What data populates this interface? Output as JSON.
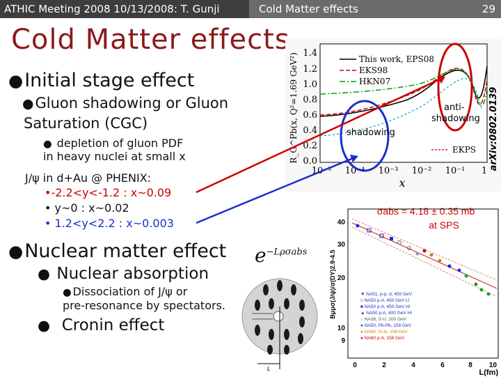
{
  "header": {
    "left": "ATHIC Meeting 2008 10/13/2008: T. Gunji",
    "center": "Cold Matter effects",
    "page_number": "29"
  },
  "title": "Cold Matter effects",
  "bullets": {
    "b1": "Initial stage effect",
    "b1_1a": "Gluon shadowing or Gluon",
    "b1_1b": "Saturation (CGC)",
    "b1_2a": "depletion of gluon PDF",
    "b1_2b": "in heavy nuclei at small x",
    "jpsi_head": "J/ψ in d+Au @ PHENIX:",
    "jpsi_1": "-2.2<y<-1.2 : x~0.09",
    "jpsi_2": "y~0 : x~0.02",
    "jpsi_3": "1.2<y<2.2 : x~0.003",
    "b2": "Nuclear matter effect",
    "b2_1": "Nuclear absorption",
    "b2_1_1a": "Dissociation of J/ψ or",
    "b2_1_1b": "pre-resonance by spectators.",
    "b2_2": "Cronin effect"
  },
  "shadow_plot": {
    "arxiv": "arXiv:0802.0139",
    "ylabel": "R_G^Pb(x, Q²=1.69 GeV²)",
    "xlabel": "x",
    "legend": [
      "This work, EPS08",
      "EKS98",
      "HKN07",
      "EKPS"
    ],
    "yticks": [
      "1.4",
      "1.2",
      "1.0",
      "0.8",
      "0.6",
      "0.4",
      "0.2",
      "0.0"
    ],
    "xticks": [
      "10⁻⁵",
      "10⁻⁴",
      "10⁻³",
      "10⁻²",
      "10⁻¹",
      "1"
    ],
    "shadowing": "shadowing",
    "antishadowing_a": "anti-",
    "antishadowing_b": "shadowing"
  },
  "absorption": {
    "formula": "e",
    "exponent": "−Lρσabs",
    "L_label": "L"
  },
  "sps_plot": {
    "sigma_label": "σabs = 4.18 ± 0.35 mb",
    "sigma_label2": "at SPS",
    "ylabel": "Bμμσ(J/ψ)/σ(DY)2.9-4.5",
    "xlabel": "L(fm)",
    "yticks": [
      "40",
      "30",
      "20",
      "10",
      "9"
    ],
    "xticks": [
      "0",
      "2",
      "4",
      "6",
      "8",
      "10"
    ],
    "legend": [
      "NA51, p-p, d, 450 GeV",
      "NA50 p-A, 450 GeV LI",
      "NA50 p-A, 450 GeV HI",
      "NA50 p-A, 400 GeV HI",
      "NA38, S-U, 200 GeV",
      "NA50, Pb-Pb, 158 GeV",
      "NA60, In-In, 158 GeV",
      "NA60 p-A, 158 GeV"
    ]
  },
  "colors": {
    "title": "#8b1a1a",
    "header_dark": "#3d3d3d",
    "header_light": "#6b6b6b",
    "red": "#cc0000",
    "blue": "#1a2fcc"
  }
}
